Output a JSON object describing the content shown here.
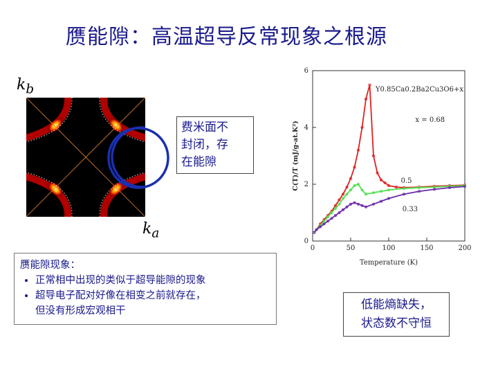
{
  "title": "赝能隙：高温超导反常现象之根源",
  "axes": {
    "kb": "k",
    "kb_sub": "b",
    "ka": "k",
    "ka_sub": "a"
  },
  "fermi_box_lines": [
    "费米面不",
    "封闭，存",
    "在能隙"
  ],
  "pseudogap_box": {
    "heading": "赝能隙现象：",
    "bullets": [
      "正常相中出现的类似于超导能隙的现象",
      "超导电子配对好像在相变之前就存在，"
    ],
    "continuation": "但没有形成宏观相干"
  },
  "entropy_box_lines": [
    "低能熵缺失，",
    "状态数不守恒"
  ],
  "colors": {
    "title": "#1a1a8c",
    "curve_high": "#e02020",
    "curve_mid": "#50e050",
    "curve_low": "#6a2aa8",
    "circle": "#1a2fb0"
  },
  "chart_data": {
    "type": "scatter",
    "formula": "Y0.85Ca0.2Ba2Cu3O6+x",
    "xlabel": "Temperature (K)",
    "ylabel": "C(T)/T (mJ/g-at.K²)",
    "xlim": [
      0,
      200
    ],
    "ylim": [
      0,
      6
    ],
    "x_ticks": [
      "0",
      "50",
      "100",
      "150",
      "200"
    ],
    "y_ticks": [
      "0",
      "2",
      "4",
      "6"
    ],
    "series": [
      {
        "name": "x = 0.68",
        "x": [
          2,
          5,
          10,
          15,
          20,
          25,
          30,
          35,
          40,
          45,
          50,
          55,
          60,
          65,
          70,
          75,
          80,
          85,
          90,
          95,
          100,
          110,
          120,
          140,
          160,
          180,
          200
        ],
        "y": [
          0.3,
          0.4,
          0.6,
          0.75,
          0.9,
          1.05,
          1.25,
          1.45,
          1.65,
          1.9,
          2.2,
          2.6,
          3.2,
          4.0,
          5.0,
          5.5,
          3.0,
          2.4,
          2.15,
          2.05,
          1.95,
          1.9,
          1.88,
          1.9,
          1.93,
          1.95,
          1.97
        ]
      },
      {
        "name": "0.5",
        "x": [
          2,
          5,
          10,
          15,
          20,
          25,
          30,
          35,
          40,
          45,
          50,
          55,
          60,
          65,
          70,
          80,
          90,
          100,
          120,
          140,
          160,
          180,
          200
        ],
        "y": [
          0.3,
          0.4,
          0.55,
          0.7,
          0.85,
          1.0,
          1.15,
          1.3,
          1.5,
          1.65,
          1.8,
          1.95,
          2.0,
          1.8,
          1.65,
          1.7,
          1.75,
          1.8,
          1.85,
          1.88,
          1.9,
          1.93,
          1.95
        ]
      },
      {
        "name": "0.33",
        "x": [
          2,
          5,
          10,
          15,
          20,
          25,
          30,
          35,
          40,
          45,
          50,
          55,
          60,
          65,
          70,
          80,
          90,
          100,
          120,
          140,
          160,
          180,
          200
        ],
        "y": [
          0.3,
          0.4,
          0.5,
          0.6,
          0.7,
          0.8,
          0.9,
          1.0,
          1.1,
          1.2,
          1.3,
          1.35,
          1.3,
          1.25,
          1.2,
          1.3,
          1.4,
          1.5,
          1.65,
          1.75,
          1.82,
          1.88,
          1.92
        ]
      }
    ]
  }
}
